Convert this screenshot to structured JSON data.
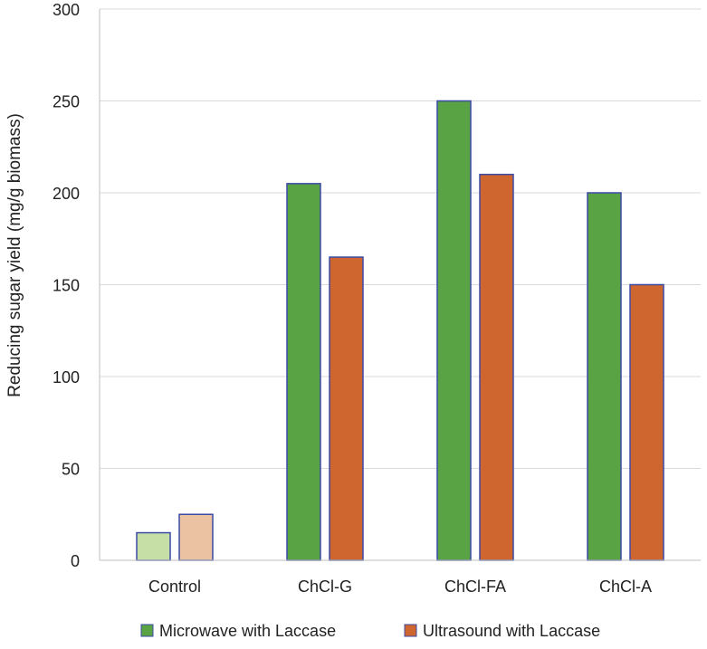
{
  "chart_data": {
    "type": "bar",
    "title": "",
    "xlabel": "",
    "ylabel": "Reducing sugar yield (mg/g biomass)",
    "ylim": [
      0,
      300
    ],
    "yticks": [
      0,
      50,
      100,
      150,
      200,
      250,
      300
    ],
    "grid": true,
    "legend_position": "bottom",
    "categories": [
      "Control",
      "ChCl-G",
      "ChCl-FA",
      "ChCl-A"
    ],
    "series": [
      {
        "name": "Microwave with Laccase",
        "color": "#5aa345",
        "light_color": "#c5dfa6",
        "values": [
          15,
          205,
          250,
          200
        ]
      },
      {
        "name": "Ultrasound with Laccase",
        "color": "#d0662f",
        "light_color": "#ebc3a2",
        "values": [
          25,
          165,
          210,
          150
        ]
      }
    ],
    "bar_outline_color": "#3b4aa6"
  }
}
